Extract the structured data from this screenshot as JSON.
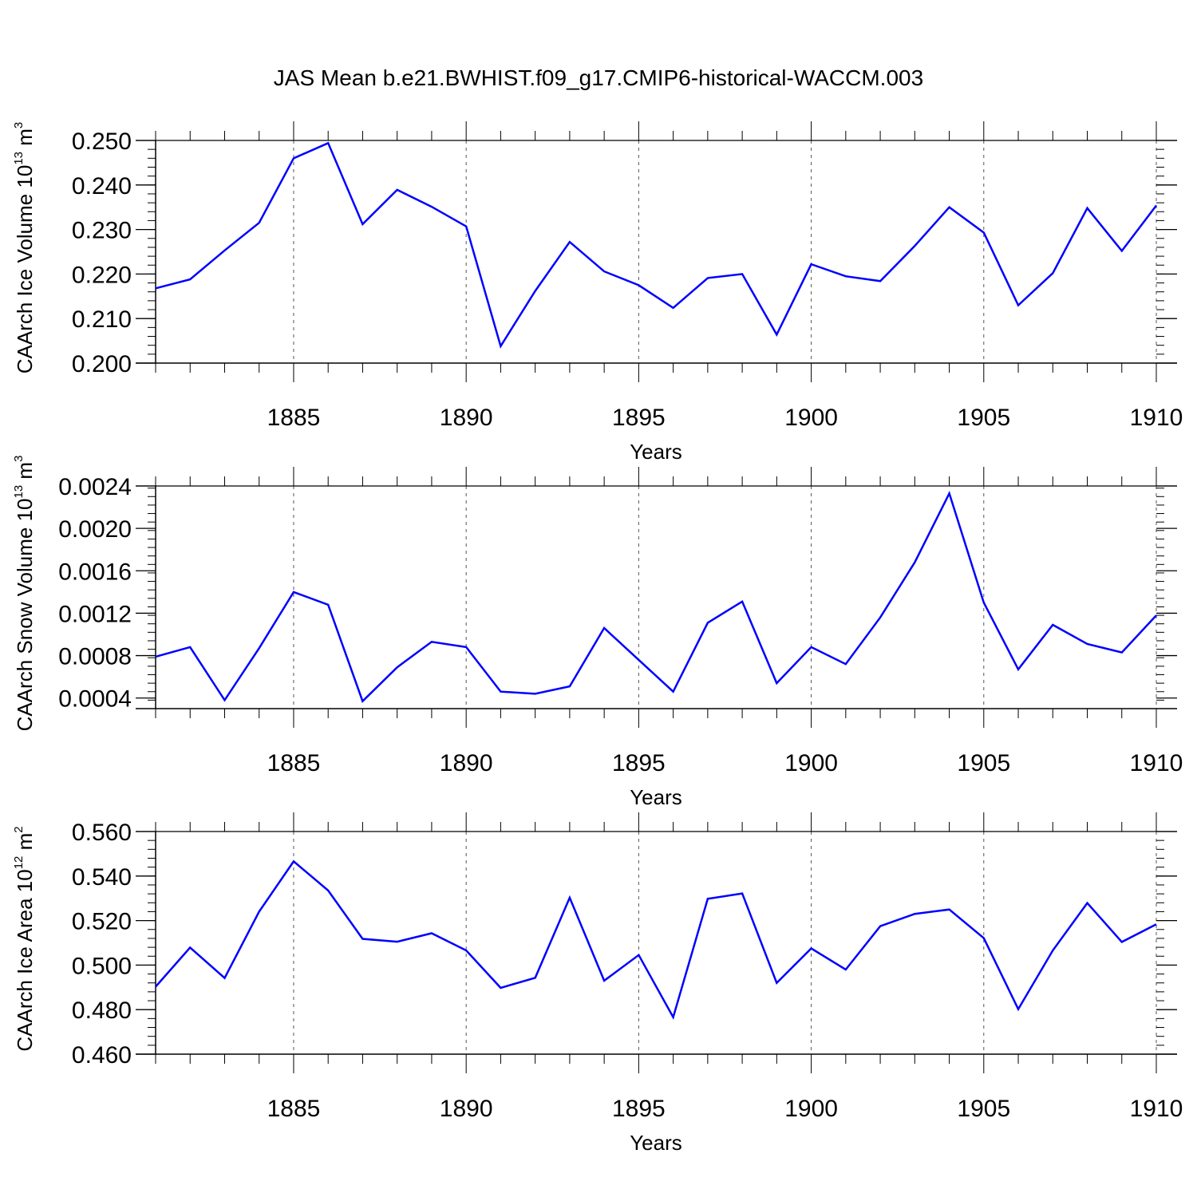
{
  "title": "JAS Mean b.e21.BWHIST.f09_g17.CMIP6-historical-WACCM.003",
  "line_color": "#0000ff",
  "chart_data": [
    {
      "type": "line",
      "ylabel": "CAArch Ice Volume 10",
      "ylabel_exp": "13",
      "ylabel_unit": " m",
      "ylabel_unit_exp": "3",
      "xlabel": "Years",
      "xlim": [
        1881,
        1910
      ],
      "ylim": [
        0.2,
        0.25
      ],
      "yticks": [
        0.2,
        0.21,
        0.22,
        0.23,
        0.24,
        0.25
      ],
      "ytick_labels": [
        "0.200",
        "0.210",
        "0.220",
        "0.230",
        "0.240",
        "0.250"
      ],
      "xticks": [
        1885,
        1890,
        1895,
        1900,
        1905,
        1910
      ],
      "xtick_labels": [
        "1885",
        "1890",
        "1895",
        "1900",
        "1905",
        "1910"
      ],
      "grid": "vertical dashed at major x ticks",
      "x": [
        1881,
        1882,
        1883,
        1884,
        1885,
        1886,
        1887,
        1888,
        1889,
        1890,
        1891,
        1892,
        1893,
        1894,
        1895,
        1896,
        1897,
        1898,
        1899,
        1900,
        1901,
        1902,
        1903,
        1904,
        1905,
        1906,
        1907,
        1908,
        1909,
        1910
      ],
      "values": [
        0.2168,
        0.2188,
        0.2253,
        0.2315,
        0.246,
        0.2494,
        0.2312,
        0.2389,
        0.2351,
        0.2307,
        0.2038,
        0.2162,
        0.2272,
        0.2206,
        0.2175,
        0.2124,
        0.2191,
        0.22,
        0.2064,
        0.2222,
        0.2195,
        0.2184,
        0.2263,
        0.235,
        0.2293,
        0.213,
        0.2202,
        0.2348,
        0.2252,
        0.2354
      ]
    },
    {
      "type": "line",
      "ylabel": "CAArch Snow Volume 10",
      "ylabel_exp": "13",
      "ylabel_unit": " m",
      "ylabel_unit_exp": "3",
      "xlabel": "Years",
      "xlim": [
        1881,
        1910
      ],
      "ylim": [
        0.0003,
        0.0024
      ],
      "yticks": [
        0.0004,
        0.0008,
        0.0012,
        0.0016,
        0.002,
        0.0024
      ],
      "ytick_labels": [
        "0.0004",
        "0.0008",
        "0.0012",
        "0.0016",
        "0.0020",
        "0.0024"
      ],
      "xticks": [
        1885,
        1890,
        1895,
        1900,
        1905,
        1910
      ],
      "xtick_labels": [
        "1885",
        "1890",
        "1895",
        "1900",
        "1905",
        "1910"
      ],
      "grid": "vertical dashed at major x ticks",
      "x": [
        1881,
        1882,
        1883,
        1884,
        1885,
        1886,
        1887,
        1888,
        1889,
        1890,
        1891,
        1892,
        1893,
        1894,
        1895,
        1896,
        1897,
        1898,
        1899,
        1900,
        1901,
        1902,
        1903,
        1904,
        1905,
        1906,
        1907,
        1908,
        1909,
        1910
      ],
      "values": [
        0.00079,
        0.00088,
        0.00038,
        0.00087,
        0.0014,
        0.00128,
        0.00037,
        0.00069,
        0.00093,
        0.00088,
        0.00046,
        0.00044,
        0.00051,
        0.00106,
        0.00076,
        0.00046,
        0.00111,
        0.00131,
        0.00054,
        0.00088,
        0.00072,
        0.00116,
        0.00168,
        0.00233,
        0.0013,
        0.00067,
        0.00109,
        0.00091,
        0.00083,
        0.00118
      ]
    },
    {
      "type": "line",
      "ylabel": "CAArch Ice Area 10",
      "ylabel_exp": "12",
      "ylabel_unit": " m",
      "ylabel_unit_exp": "2",
      "xlabel": "Years",
      "xlim": [
        1881,
        1910
      ],
      "ylim": [
        0.46,
        0.56
      ],
      "yticks": [
        0.46,
        0.48,
        0.5,
        0.52,
        0.54,
        0.56
      ],
      "ytick_labels": [
        "0.460",
        "0.480",
        "0.500",
        "0.520",
        "0.540",
        "0.560"
      ],
      "xticks": [
        1885,
        1890,
        1895,
        1900,
        1905,
        1910
      ],
      "xtick_labels": [
        "1885",
        "1890",
        "1895",
        "1900",
        "1905",
        "1910"
      ],
      "grid": "vertical dashed at major x ticks",
      "x": [
        1881,
        1882,
        1883,
        1884,
        1885,
        1886,
        1887,
        1888,
        1889,
        1890,
        1891,
        1892,
        1893,
        1894,
        1895,
        1896,
        1897,
        1898,
        1899,
        1900,
        1901,
        1902,
        1903,
        1904,
        1905,
        1906,
        1907,
        1908,
        1909,
        1910
      ],
      "values": [
        0.4903,
        0.5079,
        0.4942,
        0.524,
        0.5466,
        0.5335,
        0.5118,
        0.5105,
        0.5143,
        0.5066,
        0.4898,
        0.4943,
        0.5303,
        0.493,
        0.5045,
        0.4766,
        0.5298,
        0.5322,
        0.492,
        0.5075,
        0.498,
        0.5175,
        0.523,
        0.525,
        0.5121,
        0.4802,
        0.5066,
        0.5279,
        0.5104,
        0.5183
      ]
    }
  ]
}
